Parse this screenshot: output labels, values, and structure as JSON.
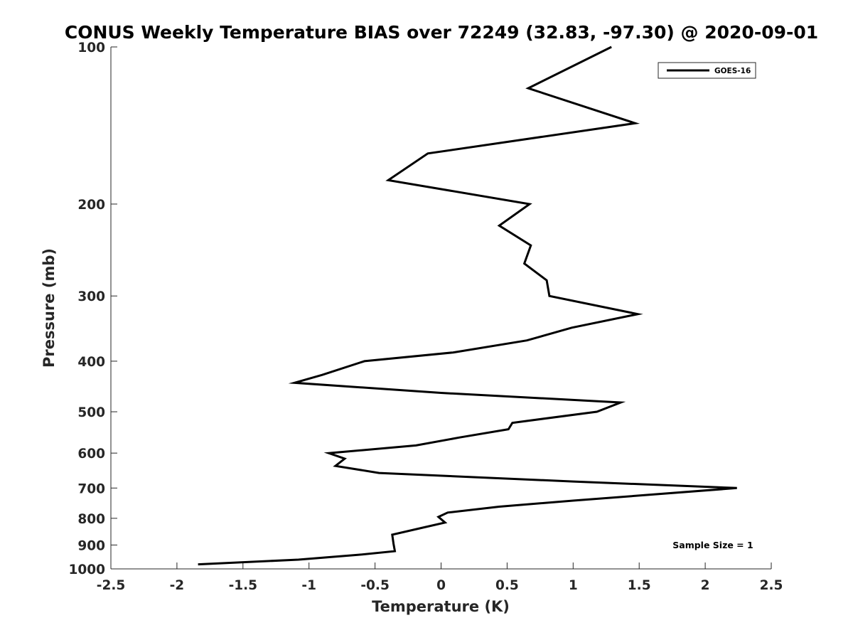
{
  "chart_data": {
    "type": "line",
    "title": "CONUS Weekly Temperature BIAS over 72249 (32.83, -97.30) @ 2020-09-01",
    "xlabel": "Temperature (K)",
    "ylabel": "Pressure (mb)",
    "xlim": [
      -2.5,
      2.5
    ],
    "ylim": [
      1000,
      100
    ],
    "yscale": "log",
    "y_reversed": true,
    "grid": false,
    "legend_position": "top-right",
    "x_ticks": [
      -2.5,
      -2,
      -1.5,
      -1,
      -0.5,
      0,
      0.5,
      1,
      1.5,
      2,
      2.5
    ],
    "x_tick_labels": [
      "-2.5",
      "-2",
      "-1.5",
      "-1",
      "-0.5",
      "0",
      "0.5",
      "1",
      "1.5",
      "2",
      "2.5"
    ],
    "y_ticks": [
      100,
      200,
      300,
      400,
      500,
      600,
      700,
      800,
      900,
      1000
    ],
    "y_tick_labels": [
      "100",
      "200",
      "300",
      "400",
      "500",
      "600",
      "700",
      "800",
      "900",
      "1000"
    ],
    "annotation": "Sample Size = 1",
    "series": [
      {
        "name": "GOES-16",
        "color": "#000000",
        "points": [
          {
            "x": 1.29,
            "y": 100
          },
          {
            "x": 0.66,
            "y": 120
          },
          {
            "x": 1.47,
            "y": 140
          },
          {
            "x": -0.1,
            "y": 160
          },
          {
            "x": -0.4,
            "y": 180
          },
          {
            "x": 0.67,
            "y": 200
          },
          {
            "x": 0.44,
            "y": 220
          },
          {
            "x": 0.68,
            "y": 240
          },
          {
            "x": 0.63,
            "y": 260
          },
          {
            "x": 0.8,
            "y": 280
          },
          {
            "x": 0.82,
            "y": 300
          },
          {
            "x": 1.49,
            "y": 325
          },
          {
            "x": 0.99,
            "y": 345
          },
          {
            "x": 0.65,
            "y": 365
          },
          {
            "x": 0.09,
            "y": 385
          },
          {
            "x": -0.58,
            "y": 400
          },
          {
            "x": -0.9,
            "y": 425
          },
          {
            "x": -1.11,
            "y": 440
          },
          {
            "x": 0.0,
            "y": 460
          },
          {
            "x": 1.36,
            "y": 480
          },
          {
            "x": 1.18,
            "y": 500
          },
          {
            "x": 0.54,
            "y": 525
          },
          {
            "x": 0.51,
            "y": 540
          },
          {
            "x": 0.14,
            "y": 560
          },
          {
            "x": -0.19,
            "y": 580
          },
          {
            "x": -0.85,
            "y": 600
          },
          {
            "x": -0.73,
            "y": 615
          },
          {
            "x": -0.8,
            "y": 635
          },
          {
            "x": -0.47,
            "y": 655
          },
          {
            "x": 1.0,
            "y": 680
          },
          {
            "x": 2.24,
            "y": 700
          },
          {
            "x": 1.0,
            "y": 740
          },
          {
            "x": 0.44,
            "y": 760
          },
          {
            "x": 0.05,
            "y": 780
          },
          {
            "x": -0.02,
            "y": 795
          },
          {
            "x": 0.03,
            "y": 815
          },
          {
            "x": -0.15,
            "y": 835
          },
          {
            "x": -0.37,
            "y": 860
          },
          {
            "x": -0.36,
            "y": 895
          },
          {
            "x": -0.35,
            "y": 925
          },
          {
            "x": -0.63,
            "y": 940
          },
          {
            "x": -1.08,
            "y": 960
          },
          {
            "x": -1.84,
            "y": 980
          }
        ]
      }
    ]
  }
}
